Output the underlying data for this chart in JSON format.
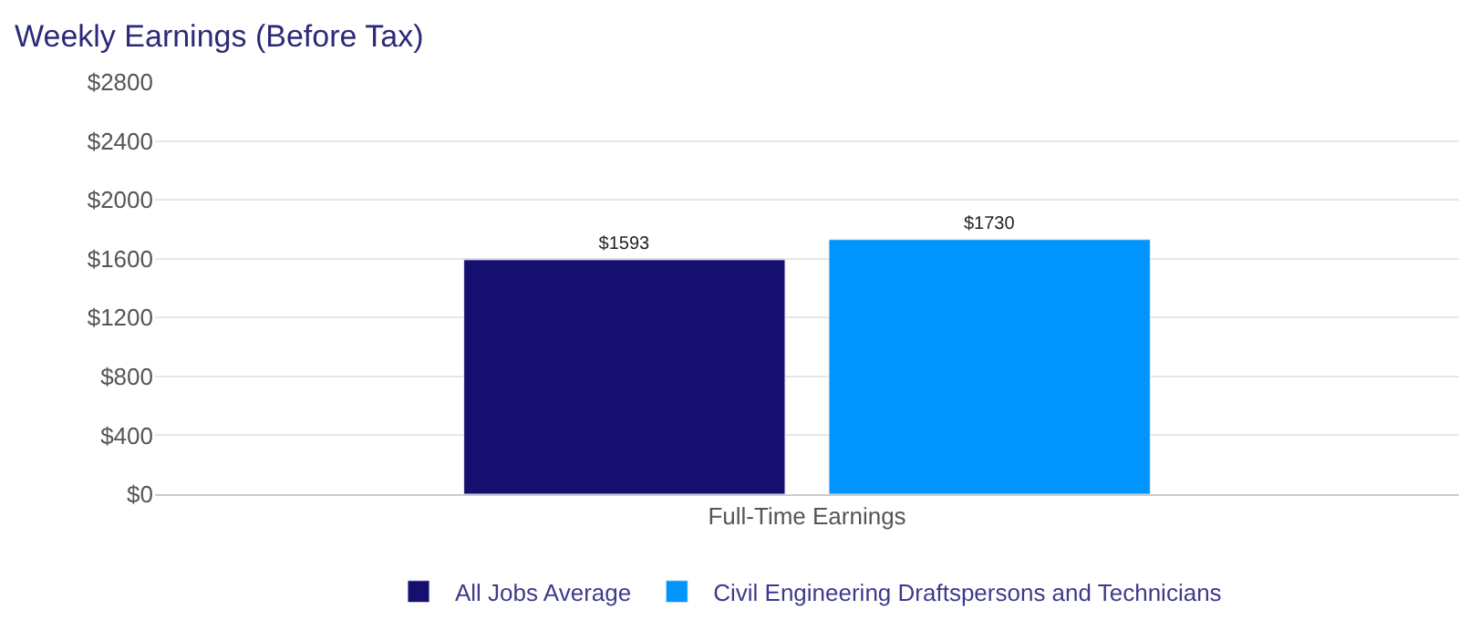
{
  "chart_data": {
    "type": "bar",
    "title": "Weekly Earnings (Before Tax)",
    "categories": [
      "Full-Time Earnings"
    ],
    "series": [
      {
        "name": "All Jobs Average",
        "color": "#170f6f",
        "values": [
          1593
        ],
        "value_labels": [
          "$1593"
        ]
      },
      {
        "name": "Civil Engineering Draftspersons and Technicians",
        "color": "#0094ff",
        "values": [
          1730
        ],
        "value_labels": [
          "$1730"
        ]
      }
    ],
    "ylim": [
      0,
      2800
    ],
    "yticks": [
      {
        "value": 0,
        "label": "$0"
      },
      {
        "value": 400,
        "label": "$400"
      },
      {
        "value": 800,
        "label": "$800"
      },
      {
        "value": 1200,
        "label": "$1200"
      },
      {
        "value": 1600,
        "label": "$1600"
      },
      {
        "value": 2000,
        "label": "$2000"
      },
      {
        "value": 2400,
        "label": "$2400"
      },
      {
        "value": 2800,
        "label": "$2800"
      }
    ],
    "grid": "y",
    "legend": "bottom"
  }
}
